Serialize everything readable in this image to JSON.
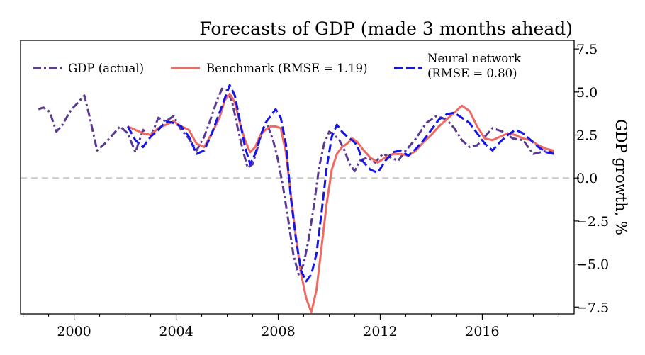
{
  "chart_data": {
    "type": "line",
    "title": "Forecasts of GDP (made 3 months ahead)",
    "xlabel": "",
    "ylabel": "GDP growth, %",
    "xlim": [
      1997.9,
      2019.6
    ],
    "ylim": [
      -7.9,
      8.0
    ],
    "x_ticks": [
      2000,
      2004,
      2008,
      2012,
      2016
    ],
    "x_tick_labels": [
      "2000",
      "2004",
      "2008",
      "2012",
      "2016"
    ],
    "y_ticks": [
      7.5,
      5.0,
      2.5,
      0.0,
      -2.5,
      -5.0,
      -7.5
    ],
    "y_tick_labels": [
      "7.5",
      "5.0",
      "2.5",
      "0.0",
      "−2.5",
      "−5.0",
      "−7.5"
    ],
    "y_axis_side": "right",
    "grid": false,
    "legend_position": "top",
    "reference_line": {
      "y": 0,
      "style": "dashed",
      "color": "#c8c8c8"
    },
    "series": [
      {
        "name": "GDP (actual)",
        "color": "#5b3a93",
        "style": "dash-dot",
        "x": [
          1998.6,
          1998.8,
          1999.0,
          1999.1,
          1999.3,
          1999.5,
          1999.7,
          1999.9,
          2000.1,
          2000.4,
          2000.6,
          2000.9,
          2001.2,
          2001.5,
          2001.8,
          2002.1,
          2002.4,
          2002.7,
          2003.0,
          2003.3,
          2003.6,
          2003.9,
          2004.2,
          2004.5,
          2004.8,
          2005.1,
          2005.3,
          2005.6,
          2005.8,
          2006.0,
          2006.2,
          2006.4,
          2006.6,
          2006.8,
          2007.0,
          2007.2,
          2007.4,
          2007.6,
          2007.8,
          2008.0,
          2008.2,
          2008.4,
          2008.6,
          2008.8,
          2009.0,
          2009.2,
          2009.4,
          2009.6,
          2009.8,
          2010.0,
          2010.2,
          2010.4,
          2010.6,
          2010.8,
          2011.0,
          2011.2,
          2011.5,
          2011.8,
          2012.1,
          2012.4,
          2012.7,
          2013.0,
          2013.4,
          2013.8,
          2014.2,
          2014.6,
          2014.9,
          2015.2,
          2015.5,
          2015.8,
          2016.1,
          2016.4,
          2016.8,
          2017.2,
          2017.6,
          2018.0,
          2018.3,
          2018.6,
          2018.8
        ],
        "y": [
          4.0,
          4.1,
          3.9,
          3.6,
          2.7,
          3.0,
          3.5,
          4.0,
          4.3,
          4.8,
          3.6,
          1.6,
          2.0,
          2.5,
          3.0,
          2.6,
          1.5,
          2.8,
          2.4,
          3.5,
          3.3,
          3.6,
          2.8,
          2.3,
          1.6,
          2.4,
          3.2,
          4.5,
          5.2,
          5.1,
          4.4,
          3.0,
          1.7,
          0.6,
          0.8,
          1.8,
          2.9,
          3.0,
          2.2,
          1.0,
          -0.6,
          -2.5,
          -4.5,
          -5.6,
          -5.0,
          -3.5,
          -1.6,
          0.6,
          2.0,
          2.7,
          2.5,
          2.2,
          1.6,
          0.8,
          0.4,
          1.0,
          1.2,
          0.9,
          1.4,
          1.2,
          1.0,
          1.6,
          2.3,
          3.2,
          3.6,
          3.4,
          2.9,
          2.2,
          1.8,
          1.9,
          2.4,
          2.9,
          2.7,
          2.3,
          2.2,
          1.4,
          1.5,
          1.6,
          1.5
        ]
      },
      {
        "name": "Benchmark (RMSE = 1.19)",
        "color": "#ee6a62",
        "style": "solid",
        "x": [
          2002.1,
          2002.4,
          2002.7,
          2003.0,
          2003.3,
          2003.6,
          2003.9,
          2004.2,
          2004.5,
          2004.8,
          2005.1,
          2005.4,
          2005.7,
          2005.9,
          2006.1,
          2006.3,
          2006.5,
          2006.7,
          2006.9,
          2007.1,
          2007.3,
          2007.5,
          2007.7,
          2007.9,
          2008.1,
          2008.3,
          2008.5,
          2008.7,
          2008.9,
          2009.1,
          2009.3,
          2009.5,
          2009.7,
          2009.9,
          2010.1,
          2010.3,
          2010.5,
          2010.7,
          2010.9,
          2011.1,
          2011.3,
          2011.6,
          2011.9,
          2012.2,
          2012.5,
          2012.8,
          2013.1,
          2013.4,
          2013.7,
          2014.0,
          2014.3,
          2014.6,
          2014.9,
          2015.2,
          2015.5,
          2015.8,
          2016.1,
          2016.4,
          2016.7,
          2017.0,
          2017.3,
          2017.6,
          2017.9,
          2018.2,
          2018.5,
          2018.8
        ],
        "y": [
          3.0,
          2.8,
          2.6,
          2.5,
          2.9,
          3.1,
          3.3,
          3.0,
          2.8,
          2.0,
          1.8,
          2.6,
          3.5,
          4.5,
          4.9,
          4.4,
          3.2,
          2.2,
          1.5,
          1.8,
          2.5,
          2.8,
          3.0,
          3.0,
          2.9,
          1.5,
          -1.0,
          -3.5,
          -5.6,
          -7.0,
          -7.8,
          -6.5,
          -4.0,
          -1.5,
          0.5,
          1.4,
          1.8,
          2.0,
          2.3,
          2.1,
          1.7,
          1.2,
          0.9,
          1.2,
          1.4,
          1.4,
          1.3,
          1.6,
          2.1,
          2.5,
          3.0,
          3.4,
          3.8,
          4.2,
          3.9,
          3.0,
          2.3,
          2.2,
          2.4,
          2.6,
          2.5,
          2.3,
          2.2,
          1.9,
          1.7,
          1.6
        ]
      },
      {
        "name": "Neural network (RMSE = 0.80)",
        "color": "#1515e8",
        "style": "dashed",
        "x": [
          2002.1,
          2002.4,
          2002.7,
          2003.0,
          2003.3,
          2003.6,
          2003.9,
          2004.2,
          2004.5,
          2004.8,
          2005.1,
          2005.4,
          2005.7,
          2005.9,
          2006.1,
          2006.3,
          2006.5,
          2006.7,
          2006.9,
          2007.1,
          2007.3,
          2007.5,
          2007.7,
          2007.9,
          2008.1,
          2008.3,
          2008.5,
          2008.7,
          2008.9,
          2009.1,
          2009.3,
          2009.5,
          2009.7,
          2009.9,
          2010.1,
          2010.3,
          2010.5,
          2010.7,
          2010.9,
          2011.1,
          2011.3,
          2011.6,
          2011.9,
          2012.2,
          2012.5,
          2012.8,
          2013.1,
          2013.4,
          2013.7,
          2014.0,
          2014.3,
          2014.6,
          2014.9,
          2015.2,
          2015.5,
          2015.8,
          2016.1,
          2016.4,
          2016.7,
          2017.0,
          2017.3,
          2017.6,
          2017.9,
          2018.2,
          2018.5,
          2018.8
        ],
        "y": [
          3.0,
          2.2,
          1.8,
          2.4,
          2.8,
          3.3,
          3.2,
          3.0,
          2.4,
          1.4,
          1.6,
          2.6,
          3.8,
          4.6,
          5.4,
          4.8,
          3.3,
          1.8,
          0.8,
          1.4,
          2.4,
          3.2,
          3.6,
          4.0,
          3.5,
          2.0,
          -1.2,
          -3.6,
          -5.4,
          -6.0,
          -5.6,
          -4.4,
          -2.0,
          0.6,
          2.4,
          3.1,
          2.7,
          2.4,
          2.2,
          1.9,
          1.0,
          0.5,
          0.3,
          1.0,
          1.5,
          1.6,
          1.3,
          1.7,
          2.2,
          2.8,
          3.4,
          3.7,
          3.8,
          3.5,
          3.2,
          2.6,
          2.0,
          1.6,
          2.1,
          2.5,
          2.8,
          2.6,
          2.2,
          1.8,
          1.5,
          1.4
        ]
      }
    ]
  }
}
